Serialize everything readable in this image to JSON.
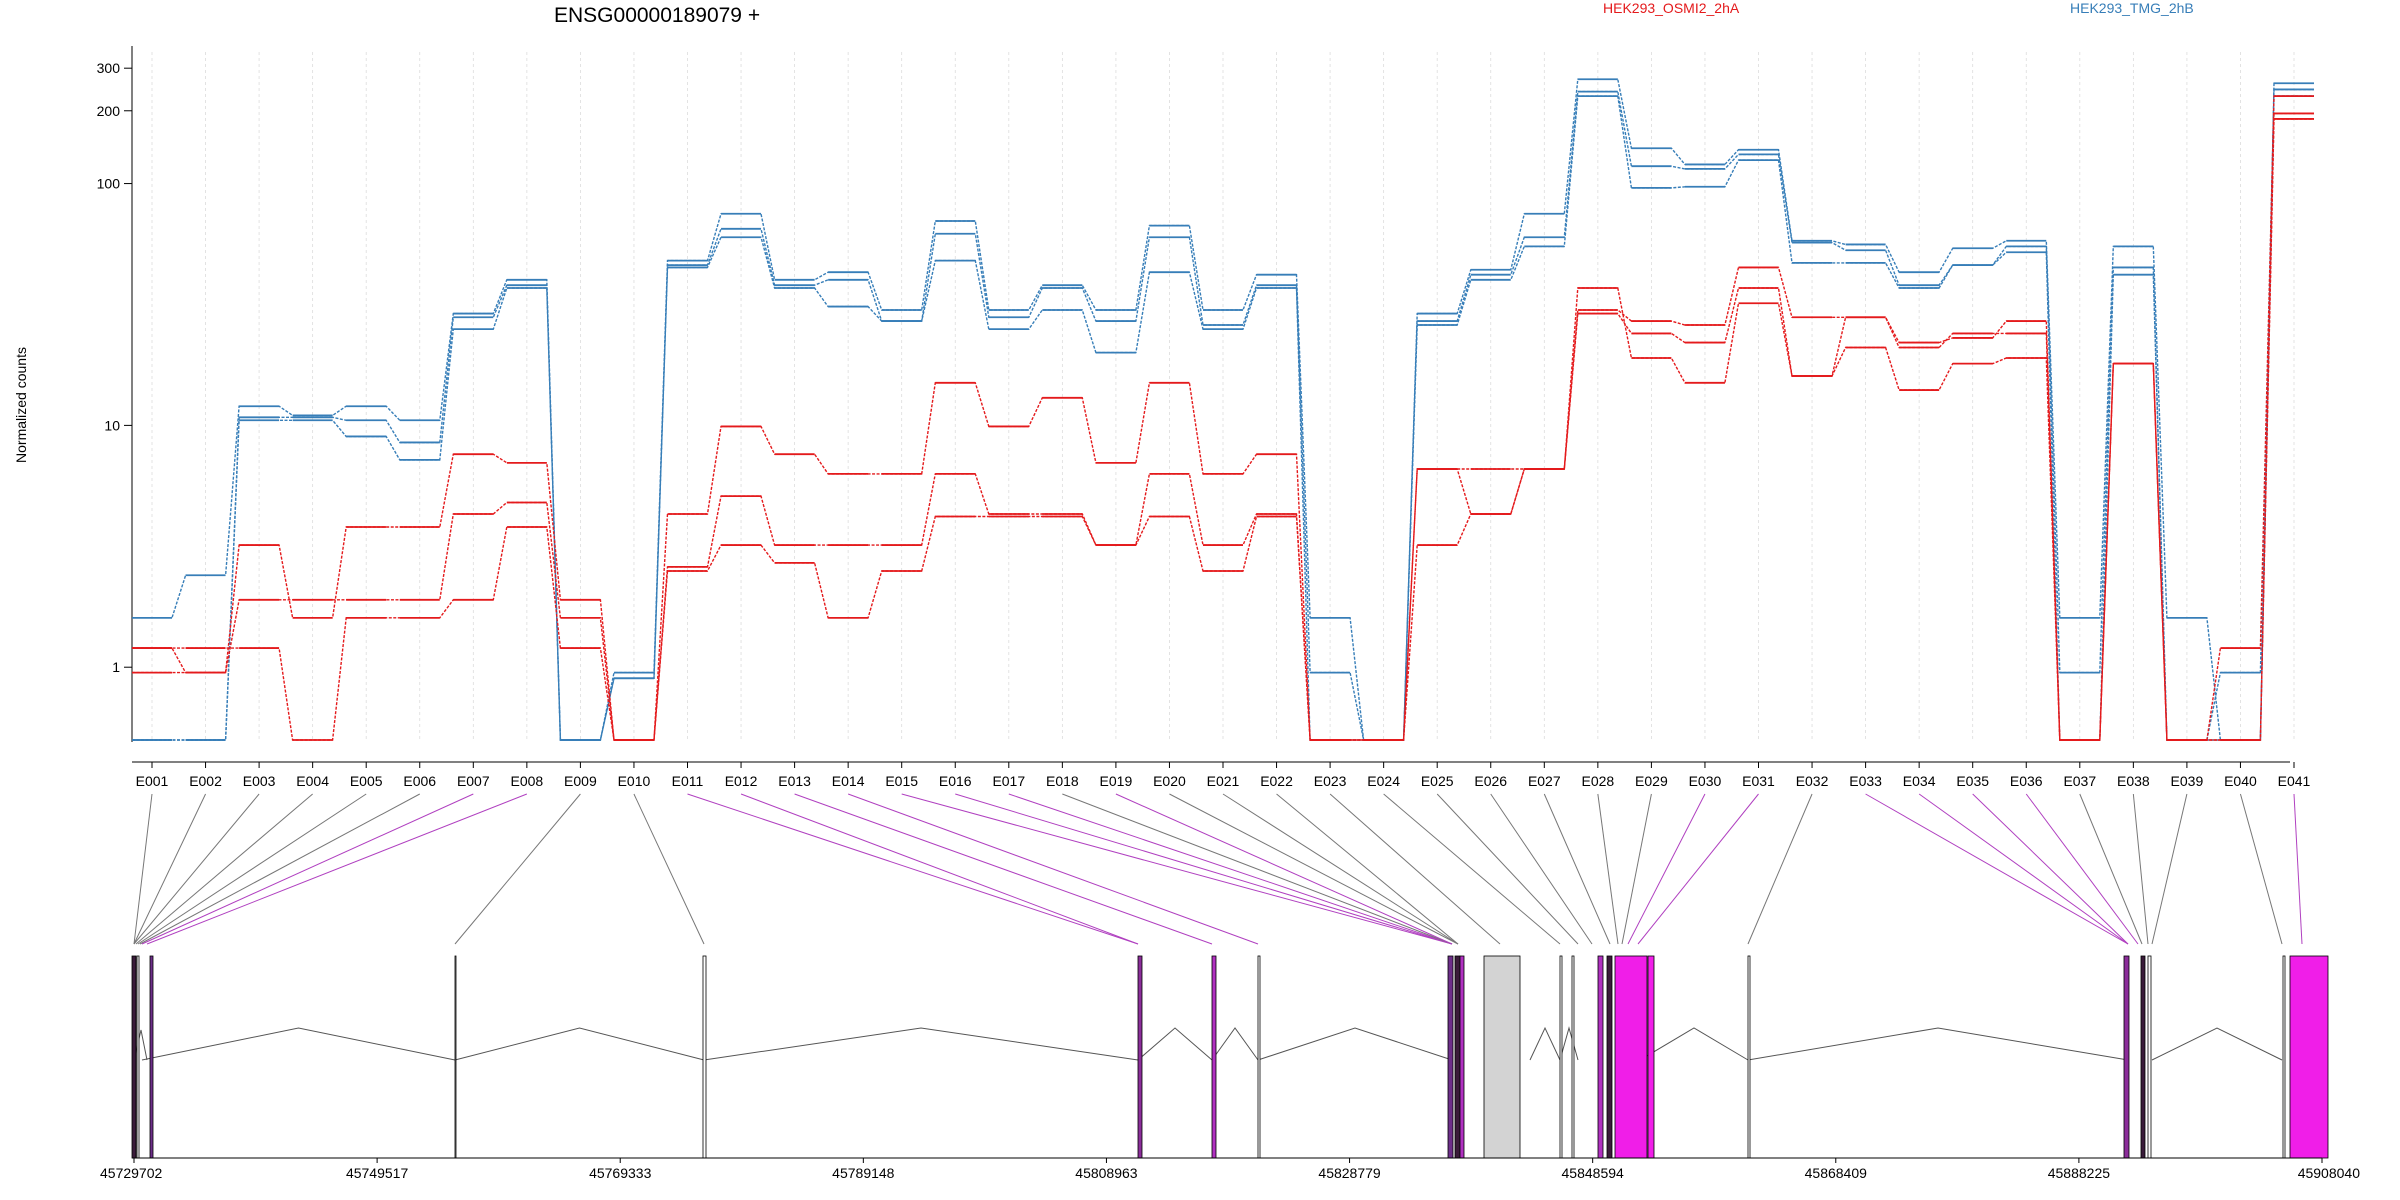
{
  "chart_data": {
    "type": "line",
    "title": "ENSG00000189079 +",
    "xlabel": "",
    "ylabel": "Normalized counts",
    "yscale": "log",
    "yticks": [
      1,
      10,
      100,
      200,
      300
    ],
    "ylim": [
      0.5,
      350
    ],
    "legend": [
      {
        "label": "HEK293_OSMI2_2hA",
        "color": "#e41a1c"
      },
      {
        "label": "HEK293_TMG_2hB",
        "color": "#377eb8"
      }
    ],
    "categories": [
      "E001",
      "E002",
      "E003",
      "E004",
      "E005",
      "E006",
      "E007",
      "E008",
      "E009",
      "E010",
      "E011",
      "E012",
      "E013",
      "E014",
      "E015",
      "E016",
      "E017",
      "E018",
      "E019",
      "E020",
      "E021",
      "E022",
      "E023",
      "E024",
      "E025",
      "E026",
      "E027",
      "E028",
      "E029",
      "E030",
      "E031",
      "E032",
      "E033",
      "E034",
      "E035",
      "E036",
      "E037",
      "E038",
      "E039",
      "E040",
      "E041"
    ],
    "series": [
      {
        "group": "HEK293_TMG_2hB",
        "color": "#377eb8",
        "values": [
          1.6,
          2.4,
          12,
          11,
          12,
          10.5,
          29,
          40,
          0.5,
          0.95,
          48,
          75,
          40,
          43,
          30,
          70,
          30,
          38,
          30,
          67,
          30,
          42,
          1.6,
          0.5,
          29,
          44,
          75,
          270,
          140,
          120,
          138,
          58,
          56,
          43,
          54,
          58,
          1.6,
          55,
          1.6,
          0.5,
          260
        ]
      },
      {
        "group": "HEK293_TMG_2hB",
        "color": "#377eb8",
        "values": [
          0.5,
          0.5,
          10.8,
          10.8,
          10.5,
          8.5,
          28,
          38,
          0.5,
          0.9,
          46,
          65,
          38,
          40,
          27,
          62,
          28,
          37,
          27,
          60,
          26,
          38,
          0.95,
          0.5,
          27,
          42,
          60,
          240,
          118,
          115,
          132,
          57,
          53,
          38,
          46,
          55,
          0.95,
          45,
          0.5,
          0.5,
          245
        ]
      },
      {
        "group": "HEK293_TMG_2hB",
        "color": "#377eb8",
        "values": [
          0.5,
          0.5,
          10.5,
          10.5,
          9,
          7.2,
          25,
          37,
          0.5,
          0.9,
          45,
          60,
          37,
          31,
          27,
          48,
          25,
          30,
          20,
          43,
          25,
          37,
          0.5,
          0.5,
          26,
          40,
          55,
          230,
          96,
          97,
          125,
          47,
          47,
          37,
          46,
          52,
          0.5,
          42,
          0.5,
          0.95,
          230
        ]
      },
      {
        "group": "HEK293_OSMI2_2hA",
        "color": "#e41a1c",
        "values": [
          1.2,
          1.2,
          1.2,
          0.5,
          1.6,
          1.6,
          1.9,
          3.8,
          1.2,
          0.5,
          2.5,
          3.2,
          2.7,
          1.6,
          2.5,
          4.2,
          4.2,
          4.2,
          3.2,
          4.2,
          2.5,
          4.2,
          0.5,
          0.5,
          3.2,
          4.3,
          6.6,
          30,
          27,
          26,
          45,
          28,
          28,
          22,
          23,
          27,
          0.5,
          18,
          0.5,
          1.2,
          230
        ]
      },
      {
        "group": "HEK293_OSMI2_2hA",
        "color": "#e41a1c",
        "values": [
          0.95,
          0.95,
          1.9,
          1.9,
          1.9,
          1.9,
          4.3,
          4.8,
          1.6,
          0.5,
          2.6,
          5.1,
          3.2,
          3.2,
          3.2,
          6.3,
          4.3,
          4.3,
          3.2,
          6.3,
          3.2,
          4.3,
          0.5,
          0.5,
          6.6,
          4.3,
          6.6,
          29,
          24,
          22,
          37,
          16,
          28,
          21,
          24,
          24,
          0.5,
          18,
          0.5,
          0.5,
          195
        ]
      },
      {
        "group": "HEK293_OSMI2_2hA",
        "color": "#e41a1c",
        "values": [
          1.2,
          0.95,
          3.2,
          1.6,
          3.8,
          3.8,
          7.6,
          7,
          1.9,
          0.5,
          4.3,
          9.9,
          7.6,
          6.3,
          6.3,
          15,
          9.9,
          13,
          7,
          15,
          6.3,
          7.6,
          0.5,
          0.5,
          6.6,
          6.6,
          6.6,
          37,
          19,
          15,
          32,
          16,
          21,
          14,
          18,
          19,
          0.5,
          18,
          0.5,
          0.5,
          185
        ]
      }
    ]
  },
  "gene_model": {
    "coordinate_labels": [
      "45729702",
      "45749517",
      "45769333",
      "45789148",
      "45808963",
      "45828779",
      "45848594",
      "45868409",
      "45888225",
      "45908040"
    ]
  }
}
